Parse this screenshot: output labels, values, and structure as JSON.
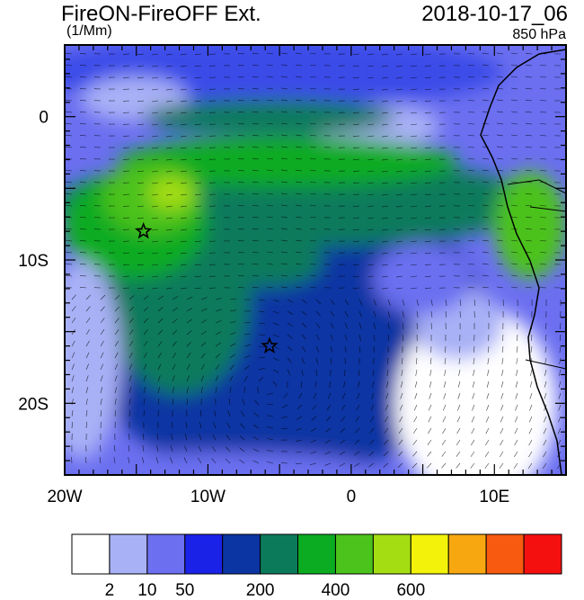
{
  "header": {
    "title": "FireON-FireOFF Ext.",
    "units": "(1/Mm)",
    "datetime": "2018-10-17_06",
    "level": "850 hPa"
  },
  "map": {
    "lon_range": [
      -20,
      15
    ],
    "lat_range": [
      -25,
      5
    ],
    "lon_ticks": [
      {
        "value": -20,
        "label": "20W"
      },
      {
        "value": -10,
        "label": "10W"
      },
      {
        "value": 0,
        "label": "0"
      },
      {
        "value": 10,
        "label": "10E"
      }
    ],
    "lat_ticks": [
      {
        "value": 0,
        "label": "0"
      },
      {
        "value": -10,
        "label": "10S"
      },
      {
        "value": -20,
        "label": "20S"
      }
    ],
    "markers": [
      {
        "name": "star-1",
        "lon": -14.5,
        "lat": -8
      },
      {
        "name": "star-2",
        "lon": -5.7,
        "lat": -16
      }
    ]
  },
  "colorbar": {
    "colors": [
      "#ffffff",
      "#a9b1f6",
      "#6b6ff0",
      "#1a22e8",
      "#0b35a3",
      "#0b7a5b",
      "#0bab22",
      "#4cc21c",
      "#a4dd12",
      "#f2f20a",
      "#f7a810",
      "#f85a0f",
      "#f51010"
    ],
    "labels": [
      "2",
      "10",
      "50",
      "200",
      "400",
      "600"
    ]
  }
}
